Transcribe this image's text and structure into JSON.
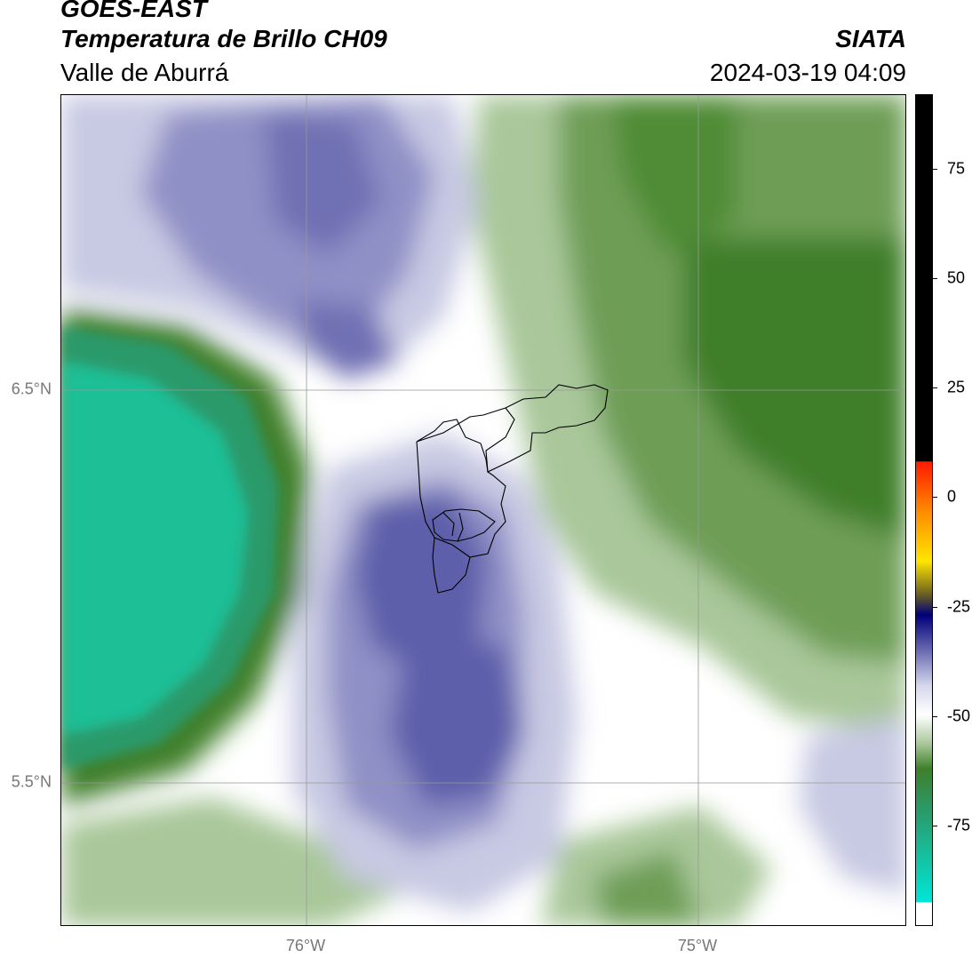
{
  "header": {
    "satellite": "GOES-EAST",
    "product": "Temperatura de Brillo CH09",
    "region": "Valle de Aburrá",
    "agency": "SIATA",
    "datetime": "2024-03-19 04:09"
  },
  "map": {
    "lat_labels": [
      "6.5°N",
      "5.5°N"
    ],
    "lon_labels": [
      "76°W",
      "75°W"
    ],
    "colors": {
      "cold_purple": "#4a4c9e",
      "mid_purple": "#8f90c6",
      "light_purple": "#c8c9e3",
      "white": "#ffffff",
      "light_green": "#a9c79a",
      "mid_green": "#6e9e56",
      "dark_green": "#3f7f2a",
      "teal": "#1dbf96"
    }
  },
  "colorbar": {
    "ticks": [
      "75",
      "50",
      "25",
      "0",
      "-25",
      "-50",
      "-75"
    ],
    "range": [
      -95,
      90
    ]
  }
}
